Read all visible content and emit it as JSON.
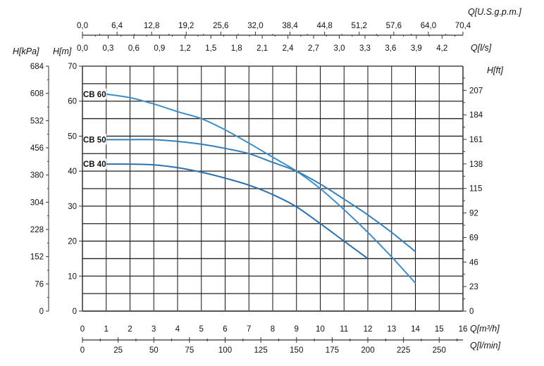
{
  "chart_data": {
    "type": "line",
    "title": "",
    "x": [
      1,
      2,
      3,
      4,
      5,
      6,
      7,
      8,
      9,
      10,
      11,
      12,
      13,
      14
    ],
    "xlabel": "Q[m³/h]",
    "ylabel": "H[m]",
    "xlim": [
      0,
      16
    ],
    "ylim": [
      0,
      70
    ],
    "grid": true,
    "x_ticks": [
      "0",
      "1",
      "2",
      "3",
      "4",
      "5",
      "6",
      "7",
      "8",
      "9",
      "10",
      "11",
      "12",
      "13",
      "14",
      "15",
      "16"
    ],
    "y_ticks": [
      "0",
      "10",
      "20",
      "30",
      "40",
      "50",
      "60",
      "70"
    ],
    "series": [
      {
        "name": "CB 60",
        "color": "#3f8fc6",
        "x": [
          1,
          2,
          3,
          4,
          5,
          6,
          7,
          8,
          9,
          10,
          11,
          12,
          13,
          14
        ],
        "values": [
          62,
          61,
          59.2,
          57,
          55,
          51.8,
          48,
          44,
          40,
          35,
          29,
          22.5,
          15.5,
          8
        ]
      },
      {
        "name": "CB 50",
        "color": "#3580bb",
        "x": [
          1,
          2,
          3,
          4,
          5,
          6,
          7,
          8,
          9,
          10,
          11,
          12,
          13,
          14
        ],
        "values": [
          49,
          49,
          49,
          48.5,
          47.7,
          46.5,
          45,
          42.5,
          40,
          36.3,
          32,
          27.5,
          22.5,
          17
        ]
      },
      {
        "name": "CB 40",
        "color": "#2a70ad",
        "x": [
          1,
          2,
          3,
          4,
          5,
          6,
          7,
          8,
          9,
          10,
          11,
          12
        ],
        "values": [
          42,
          42,
          41.8,
          41,
          39.7,
          38,
          36,
          33.3,
          29.8,
          25,
          20,
          15
        ]
      }
    ],
    "secondary_axes": {
      "left_kpa": {
        "label": "H[kPa]",
        "ticks": [
          "0",
          "76",
          "152",
          "228",
          "304",
          "380",
          "456",
          "532",
          "608",
          "684"
        ]
      },
      "right_ft": {
        "label": "H[ft]",
        "ticks": [
          "0",
          "23",
          "46",
          "69",
          "92",
          "115",
          "138",
          "161",
          "184",
          "207"
        ]
      },
      "top_gpm": {
        "label": "Q[U.S.g.p.m.]",
        "ticks": [
          "0,0",
          "6,4",
          "12,8",
          "19,2",
          "25,6",
          "32,0",
          "38,4",
          "44,8",
          "51,2",
          "57,6",
          "64,0",
          "70,4"
        ]
      },
      "top_ls": {
        "label": "Q[l/s]",
        "ticks": [
          "0,0",
          "0,3",
          "0,6",
          "0,9",
          "1,2",
          "1,5",
          "1,8",
          "2,1",
          "2,4",
          "2,7",
          "3,0",
          "3,3",
          "3,6",
          "3,9",
          "4,2"
        ]
      },
      "bottom_lmin": {
        "label": "Q[l/min]",
        "ticks": [
          "0",
          "25",
          "50",
          "75",
          "100",
          "125",
          "150",
          "175",
          "200",
          "225",
          "250"
        ]
      }
    }
  }
}
